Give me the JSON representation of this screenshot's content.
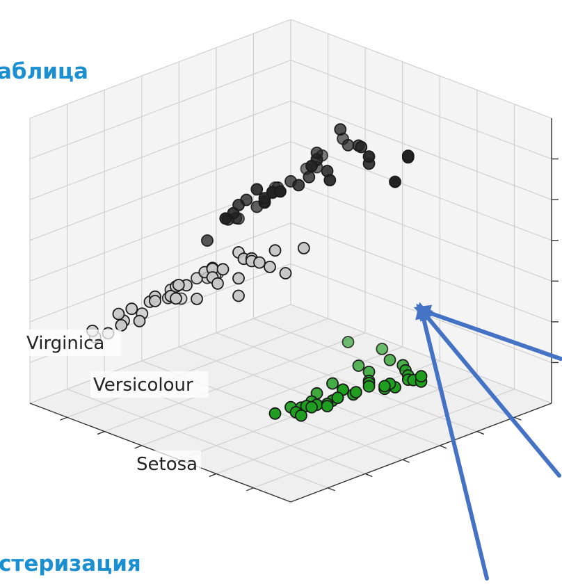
{
  "slide": {
    "heading_top": "аблица",
    "heading_bottom": "стеризация"
  },
  "colors": {
    "accent_text": "#1a8fd1",
    "arrow": "#4472c4",
    "virginica_point": "#222222",
    "versicolour_point": "#c8c8c8",
    "setosa_point": "#1f9e1f",
    "grid": "#d0d0d0",
    "pane": "#f4f4f4"
  },
  "chart_data": {
    "type": "scatter",
    "projection": "3d",
    "title": "",
    "grid": true,
    "tick_labels_visible": false,
    "annotations": [
      {
        "text": "Virginica",
        "target": "virginica"
      },
      {
        "text": "Versicolour",
        "target": "versicolour"
      },
      {
        "text": "Setosa",
        "target": "setosa"
      }
    ],
    "series": [
      {
        "name": "Virginica",
        "key": "virginica",
        "color": "#222222",
        "points": [
          [
            0.35,
            0.8,
            0.92
          ],
          [
            0.3,
            0.75,
            0.88
          ],
          [
            0.55,
            0.95,
            0.95
          ],
          [
            0.4,
            0.7,
            0.9
          ],
          [
            0.32,
            0.62,
            0.82
          ],
          [
            0.45,
            0.6,
            0.8
          ],
          [
            0.28,
            0.55,
            0.84
          ],
          [
            0.38,
            0.52,
            0.78
          ],
          [
            0.22,
            0.48,
            0.8
          ],
          [
            0.5,
            0.58,
            0.86
          ],
          [
            0.42,
            0.45,
            0.72
          ],
          [
            0.33,
            0.4,
            0.7
          ],
          [
            0.25,
            0.35,
            0.74
          ],
          [
            0.48,
            0.38,
            0.66
          ],
          [
            0.3,
            0.3,
            0.64
          ],
          [
            0.4,
            0.3,
            0.6
          ],
          [
            0.18,
            0.4,
            0.76
          ],
          [
            0.2,
            0.3,
            0.68
          ],
          [
            0.15,
            0.25,
            0.62
          ],
          [
            0.27,
            0.22,
            0.58
          ],
          [
            0.35,
            0.22,
            0.54
          ],
          [
            0.45,
            0.28,
            0.62
          ],
          [
            0.55,
            0.42,
            0.74
          ],
          [
            0.52,
            0.32,
            0.64
          ],
          [
            0.12,
            0.18,
            0.58
          ],
          [
            0.22,
            0.15,
            0.52
          ],
          [
            0.62,
            0.55,
            0.8
          ],
          [
            0.58,
            0.48,
            0.74
          ],
          [
            0.6,
            0.38,
            0.66
          ],
          [
            0.36,
            0.15,
            0.48
          ],
          [
            0.1,
            0.3,
            0.72
          ],
          [
            0.08,
            0.2,
            0.62
          ],
          [
            0.44,
            0.2,
            0.52
          ],
          [
            0.3,
            0.1,
            0.44
          ],
          [
            0.66,
            0.62,
            0.84
          ],
          [
            0.7,
            0.45,
            0.7
          ],
          [
            0.26,
            0.45,
            0.86
          ],
          [
            0.5,
            0.18,
            0.46
          ],
          [
            0.16,
            0.1,
            0.5
          ],
          [
            0.05,
            0.15,
            0.58
          ]
        ]
      },
      {
        "name": "Versicolour",
        "key": "versicolour",
        "color": "#c8c8c8",
        "points": [
          [
            0.7,
            0.75,
            0.7
          ],
          [
            0.75,
            0.6,
            0.62
          ],
          [
            0.8,
            0.68,
            0.66
          ],
          [
            0.65,
            0.5,
            0.56
          ],
          [
            0.72,
            0.42,
            0.52
          ],
          [
            0.85,
            0.55,
            0.58
          ],
          [
            0.6,
            0.3,
            0.44
          ],
          [
            0.68,
            0.28,
            0.4
          ],
          [
            0.78,
            0.35,
            0.46
          ],
          [
            0.55,
            0.22,
            0.38
          ],
          [
            0.62,
            0.18,
            0.34
          ],
          [
            0.74,
            0.22,
            0.36
          ],
          [
            0.82,
            0.3,
            0.4
          ],
          [
            0.88,
            0.42,
            0.48
          ],
          [
            0.9,
            0.62,
            0.6
          ],
          [
            0.92,
            0.72,
            0.66
          ],
          [
            0.48,
            0.12,
            0.3
          ],
          [
            0.56,
            0.1,
            0.28
          ],
          [
            0.66,
            0.12,
            0.28
          ],
          [
            0.76,
            0.15,
            0.3
          ],
          [
            0.84,
            0.18,
            0.32
          ],
          [
            0.94,
            0.5,
            0.52
          ],
          [
            0.96,
            0.6,
            0.56
          ],
          [
            0.4,
            0.08,
            0.26
          ],
          [
            0.52,
            0.05,
            0.22
          ],
          [
            0.62,
            0.05,
            0.2
          ],
          [
            0.72,
            0.08,
            0.22
          ],
          [
            0.86,
            0.1,
            0.24
          ],
          [
            0.95,
            0.3,
            0.36
          ],
          [
            0.98,
            0.4,
            0.42
          ],
          [
            0.34,
            0.05,
            0.24
          ],
          [
            0.44,
            0.02,
            0.18
          ],
          [
            0.8,
            0.05,
            0.18
          ],
          [
            0.9,
            0.2,
            0.28
          ],
          [
            0.58,
            0.4,
            0.5
          ],
          [
            0.76,
            0.5,
            0.56
          ],
          [
            0.68,
            0.62,
            0.64
          ],
          [
            0.86,
            0.78,
            0.7
          ],
          [
            0.98,
            0.78,
            0.64
          ],
          [
            0.3,
            0.02,
            0.22
          ],
          [
            0.5,
            0.3,
            0.46
          ],
          [
            0.92,
            0.9,
            0.74
          ]
        ]
      },
      {
        "name": "Setosa",
        "key": "setosa",
        "color": "#1f9e1f",
        "points": [
          [
            0.4,
            0.9,
            0.18
          ],
          [
            0.45,
            0.85,
            0.16
          ],
          [
            0.5,
            0.88,
            0.2
          ],
          [
            0.35,
            0.82,
            0.14
          ],
          [
            0.42,
            0.78,
            0.12
          ],
          [
            0.55,
            0.8,
            0.16
          ],
          [
            0.3,
            0.75,
            0.1
          ],
          [
            0.48,
            0.72,
            0.1
          ],
          [
            0.38,
            0.68,
            0.08
          ],
          [
            0.58,
            0.74,
            0.12
          ],
          [
            0.25,
            0.7,
            0.08
          ],
          [
            0.52,
            0.66,
            0.06
          ],
          [
            0.32,
            0.62,
            0.05
          ],
          [
            0.62,
            0.82,
            0.2
          ],
          [
            0.44,
            0.62,
            0.04
          ],
          [
            0.2,
            0.64,
            0.06
          ],
          [
            0.56,
            0.6,
            0.04
          ],
          [
            0.66,
            0.76,
            0.14
          ],
          [
            0.36,
            0.56,
            0.02
          ],
          [
            0.28,
            0.58,
            0.03
          ],
          [
            0.48,
            0.56,
            0.02
          ],
          [
            0.6,
            0.66,
            0.08
          ],
          [
            0.7,
            0.88,
            0.22
          ],
          [
            0.15,
            0.58,
            0.04
          ],
          [
            0.4,
            0.5,
            0.0
          ],
          [
            0.52,
            0.52,
            0.0
          ],
          [
            0.22,
            0.52,
            0.02
          ],
          [
            0.64,
            0.58,
            0.04
          ],
          [
            0.74,
            0.82,
            0.18
          ],
          [
            0.12,
            0.5,
            0.02
          ],
          [
            0.32,
            0.48,
            0.0
          ],
          [
            0.78,
            0.92,
            0.24
          ],
          [
            0.68,
            0.7,
            0.1
          ],
          [
            0.82,
            0.96,
            0.26
          ],
          [
            0.18,
            0.44,
            0.0
          ],
          [
            0.58,
            0.94,
            0.24
          ],
          [
            0.46,
            0.96,
            0.24
          ],
          [
            0.86,
            0.9,
            0.22
          ],
          [
            0.05,
            0.4,
            0.0
          ],
          [
            0.08,
            0.3,
            0.0
          ]
        ]
      }
    ]
  }
}
